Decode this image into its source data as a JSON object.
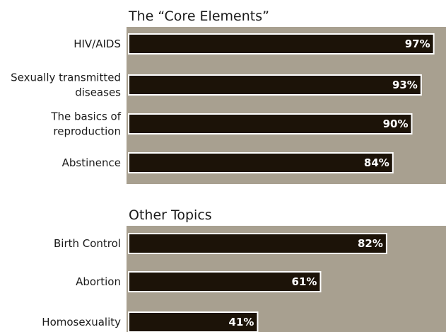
{
  "colors": {
    "panel_background": "#a8a090",
    "bar_fill": "#1c1308",
    "bar_outline": "#ffffff",
    "label_text": "#1a1a1a",
    "value_text": "#ffffff"
  },
  "chart_data": [
    {
      "type": "bar",
      "orientation": "horizontal",
      "title": "The “Core Elements”",
      "categories": [
        [
          "HIV/AIDS"
        ],
        [
          "Sexually transmitted",
          "diseases"
        ],
        [
          "The basics of",
          "reproduction"
        ],
        [
          "Abstinence"
        ]
      ],
      "values": [
        97,
        93,
        90,
        84
      ],
      "value_labels": [
        "97%",
        "93%",
        "90%",
        "84%"
      ],
      "xlim": [
        0,
        100
      ],
      "grid": false
    },
    {
      "type": "bar",
      "orientation": "horizontal",
      "title": "Other Topics",
      "categories": [
        [
          "Birth Control"
        ],
        [
          "Abortion"
        ],
        [
          "Homosexuality"
        ]
      ],
      "values": [
        82,
        61,
        41
      ],
      "value_labels": [
        "82%",
        "61%",
        "41%"
      ],
      "xlim": [
        0,
        100
      ],
      "grid": false
    }
  ]
}
